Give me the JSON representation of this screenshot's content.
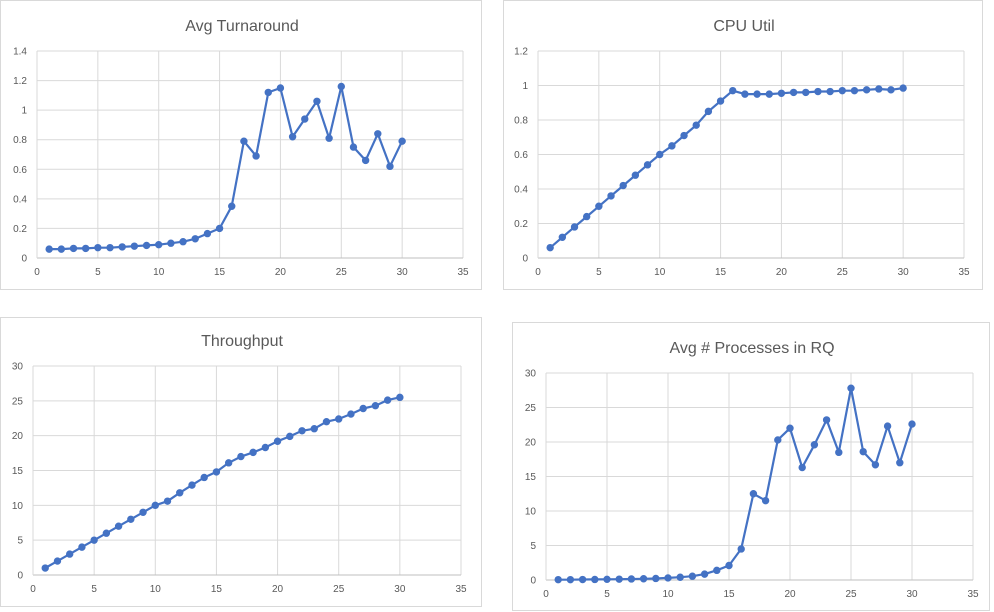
{
  "chart_data": [
    {
      "type": "line",
      "title": "Avg Turnaround",
      "xlabel": "",
      "ylabel": "",
      "xlim": [
        0,
        35
      ],
      "ylim": [
        0,
        1.4
      ],
      "xticks": [
        0,
        5,
        10,
        15,
        20,
        25,
        30,
        35
      ],
      "yticks": [
        0,
        0.2,
        0.4,
        0.6,
        0.8,
        1,
        1.2,
        1.4
      ],
      "grid": true,
      "x": [
        1,
        2,
        3,
        4,
        5,
        6,
        7,
        8,
        9,
        10,
        11,
        12,
        13,
        14,
        15,
        16,
        17,
        18,
        19,
        20,
        21,
        22,
        23,
        24,
        25,
        26,
        27,
        28,
        29,
        30
      ],
      "series": [
        {
          "values": [
            0.06,
            0.06,
            0.065,
            0.065,
            0.07,
            0.07,
            0.075,
            0.08,
            0.085,
            0.09,
            0.1,
            0.11,
            0.13,
            0.165,
            0.2,
            0.35,
            0.79,
            0.69,
            1.12,
            1.15,
            0.82,
            0.94,
            1.06,
            0.81,
            1.16,
            0.75,
            0.66,
            0.84,
            0.62,
            0.79
          ]
        }
      ]
    },
    {
      "type": "line",
      "title": "CPU Util",
      "xlabel": "",
      "ylabel": "",
      "xlim": [
        0,
        35
      ],
      "ylim": [
        0,
        1.2
      ],
      "xticks": [
        0,
        5,
        10,
        15,
        20,
        25,
        30,
        35
      ],
      "yticks": [
        0,
        0.2,
        0.4,
        0.6,
        0.8,
        1,
        1.2
      ],
      "grid": true,
      "x": [
        1,
        2,
        3,
        4,
        5,
        6,
        7,
        8,
        9,
        10,
        11,
        12,
        13,
        14,
        15,
        16,
        17,
        18,
        19,
        20,
        21,
        22,
        23,
        24,
        25,
        26,
        27,
        28,
        29,
        30
      ],
      "series": [
        {
          "values": [
            0.06,
            0.12,
            0.18,
            0.24,
            0.3,
            0.36,
            0.42,
            0.48,
            0.54,
            0.6,
            0.65,
            0.71,
            0.77,
            0.85,
            0.91,
            0.97,
            0.95,
            0.95,
            0.95,
            0.955,
            0.96,
            0.96,
            0.965,
            0.965,
            0.97,
            0.97,
            0.975,
            0.98,
            0.975,
            0.985
          ]
        }
      ]
    },
    {
      "type": "line",
      "title": "Throughput",
      "xlabel": "",
      "ylabel": "",
      "xlim": [
        0,
        35
      ],
      "ylim": [
        0,
        30
      ],
      "xticks": [
        0,
        5,
        10,
        15,
        20,
        25,
        30,
        35
      ],
      "yticks": [
        0,
        5,
        10,
        15,
        20,
        25,
        30
      ],
      "grid": true,
      "x": [
        1,
        2,
        3,
        4,
        5,
        6,
        7,
        8,
        9,
        10,
        11,
        12,
        13,
        14,
        15,
        16,
        17,
        18,
        19,
        20,
        21,
        22,
        23,
        24,
        25,
        26,
        27,
        28,
        29,
        30
      ],
      "series": [
        {
          "values": [
            1,
            2,
            3,
            4,
            5,
            6,
            7,
            8,
            9,
            10,
            10.6,
            11.8,
            12.9,
            14,
            14.8,
            16.1,
            17,
            17.6,
            18.3,
            19.2,
            19.9,
            20.7,
            21,
            22,
            22.4,
            23.1,
            23.9,
            24.3,
            25.1,
            25.5
          ]
        }
      ]
    },
    {
      "type": "line",
      "title": "Avg # Processes in RQ",
      "xlabel": "",
      "ylabel": "",
      "xlim": [
        0,
        35
      ],
      "ylim": [
        0,
        30
      ],
      "xticks": [
        0,
        5,
        10,
        15,
        20,
        25,
        30,
        35
      ],
      "yticks": [
        0,
        5,
        10,
        15,
        20,
        25,
        30
      ],
      "grid": true,
      "x": [
        1,
        2,
        3,
        4,
        5,
        6,
        7,
        8,
        9,
        10,
        11,
        12,
        13,
        14,
        15,
        16,
        17,
        18,
        19,
        20,
        21,
        22,
        23,
        24,
        25,
        26,
        27,
        28,
        29,
        30
      ],
      "series": [
        {
          "values": [
            0.05,
            0.05,
            0.07,
            0.08,
            0.1,
            0.12,
            0.15,
            0.18,
            0.22,
            0.3,
            0.4,
            0.55,
            0.85,
            1.4,
            2.1,
            4.5,
            12.5,
            11.5,
            20.3,
            22,
            16.3,
            19.6,
            23.2,
            18.5,
            27.8,
            18.6,
            16.7,
            22.3,
            17,
            22.6
          ]
        }
      ]
    }
  ]
}
